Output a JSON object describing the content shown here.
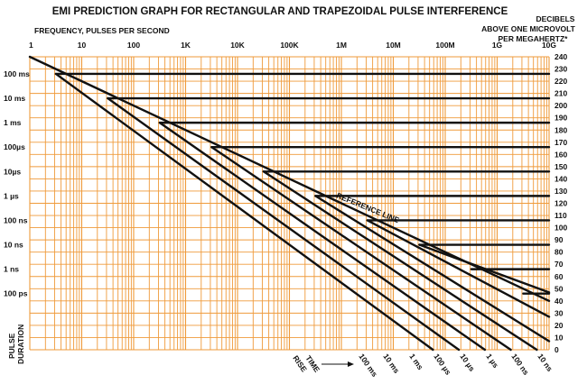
{
  "chart_data": {
    "type": "line",
    "title": "EMI PREDICTION GRAPH FOR RECTANGULAR AND TRAPEZOIDAL PULSE INTERFERENCE",
    "xlabel": "FREQUENCY, PULSES PER SECOND",
    "ylabel_right": [
      "DECIBELS",
      "ABOVE ONE MICROVOLT",
      "PER MEGAHERTZ*"
    ],
    "ylabel_left": [
      "PULSE",
      "DURATION"
    ],
    "rise_label": "RISE",
    "time_label": "TIME",
    "x_scale": "log",
    "xlim": [
      1,
      10000000000
    ],
    "ylim": [
      0,
      240
    ],
    "grid": true,
    "x_ticks": [
      {
        "value": 1,
        "label": "1"
      },
      {
        "value": 10,
        "label": "10"
      },
      {
        "value": 100,
        "label": "100"
      },
      {
        "value": 1000,
        "label": "1K"
      },
      {
        "value": 10000,
        "label": "10K"
      },
      {
        "value": 100000,
        "label": "100K"
      },
      {
        "value": 1000000,
        "label": "1M"
      },
      {
        "value": 10000000,
        "label": "10M"
      },
      {
        "value": 100000000,
        "label": "100M"
      },
      {
        "value": 1000000000,
        "label": "1G"
      },
      {
        "value": 10000000000,
        "label": "10G"
      }
    ],
    "y_ticks": [
      240,
      230,
      220,
      210,
      200,
      190,
      180,
      170,
      160,
      150,
      140,
      130,
      120,
      110,
      100,
      90,
      80,
      70,
      60,
      50,
      40,
      30,
      20,
      10,
      0
    ],
    "pulse_duration_labels": [
      {
        "label": "100 ms",
        "db": 226
      },
      {
        "label": "10 ms",
        "db": 206
      },
      {
        "label": "1 ms",
        "db": 186
      },
      {
        "label": "100µs",
        "db": 166
      },
      {
        "label": "10µs",
        "db": 146
      },
      {
        "label": "1 µs",
        "db": 126
      },
      {
        "label": "100 ns",
        "db": 106
      },
      {
        "label": "10 ns",
        "db": 86
      },
      {
        "label": "1 ns",
        "db": 66
      },
      {
        "label": "100 ps",
        "db": 46
      }
    ],
    "rise_time_labels": [
      "100 ms",
      "10 ms",
      "1 ms",
      "100 µs",
      "10 µs",
      "1 µs",
      "100 ns",
      "10 ns"
    ],
    "reference_line": {
      "label": "REFERENCE LINE",
      "points": [
        [
          1,
          240
        ],
        [
          10000000000,
          40
        ]
      ]
    },
    "series": [
      {
        "points": [
          [
            3.18,
            226
          ],
          [
            10000000000,
            226
          ]
        ]
      },
      {
        "points": [
          [
            31.8,
            206
          ],
          [
            10000000000,
            206
          ]
        ]
      },
      {
        "points": [
          [
            318,
            186
          ],
          [
            10000000000,
            186
          ]
        ]
      },
      {
        "points": [
          [
            3180,
            166
          ],
          [
            10000000000,
            166
          ]
        ]
      },
      {
        "points": [
          [
            31800,
            146
          ],
          [
            10000000000,
            146
          ]
        ]
      },
      {
        "points": [
          [
            318000,
            126
          ],
          [
            10000000000,
            126
          ]
        ]
      },
      {
        "points": [
          [
            3180000,
            106
          ],
          [
            10000000000,
            106
          ]
        ]
      },
      {
        "points": [
          [
            31800000,
            86
          ],
          [
            10000000000,
            86
          ]
        ]
      },
      {
        "points": [
          [
            318000000,
            66
          ],
          [
            10000000000,
            66
          ]
        ]
      },
      {
        "points": [
          [
            3180000000,
            46
          ],
          [
            10000000000,
            46
          ]
        ]
      },
      {
        "points": [
          [
            3.18,
            226
          ],
          [
            58000000,
            0
          ]
        ]
      },
      {
        "points": [
          [
            31.8,
            206
          ],
          [
            183000000,
            0
          ]
        ]
      },
      {
        "points": [
          [
            318,
            186
          ],
          [
            580000000,
            0
          ]
        ]
      },
      {
        "points": [
          [
            3180,
            166
          ],
          [
            1830000000,
            0
          ]
        ]
      },
      {
        "points": [
          [
            31800,
            146
          ],
          [
            5800000000,
            0
          ]
        ]
      },
      {
        "points": [
          [
            318000,
            126
          ],
          [
            10000000000,
            7
          ]
        ]
      },
      {
        "points": [
          [
            3180000,
            106
          ],
          [
            10000000000,
            27
          ]
        ]
      },
      {
        "points": [
          [
            31800000,
            86
          ],
          [
            10000000000,
            47
          ]
        ]
      }
    ]
  }
}
